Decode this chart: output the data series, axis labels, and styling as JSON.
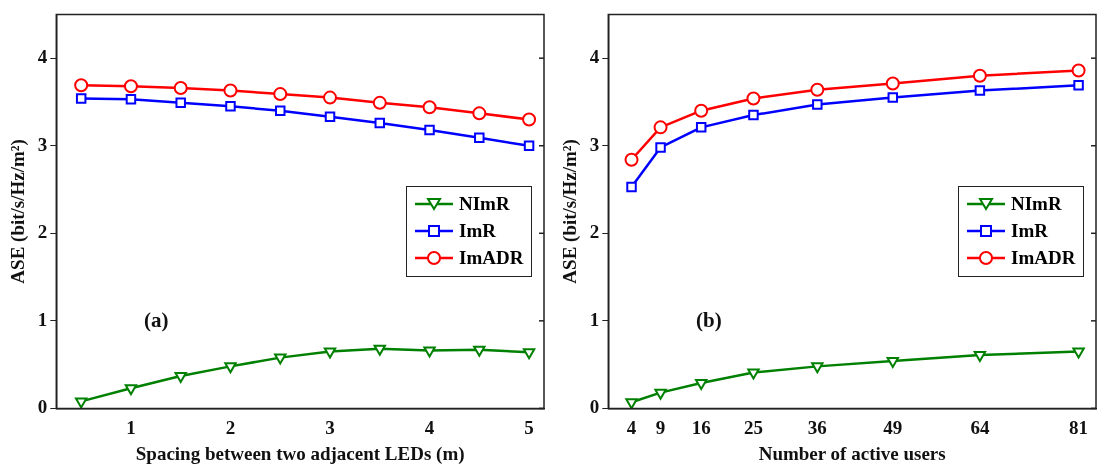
{
  "chart_data": [
    {
      "type": "line",
      "xlabel": "Spacing between two adjacent LEDs (m)",
      "ylabel": "ASE (bit/s/Hz/m²)",
      "annotations": [
        "(a)"
      ],
      "x": [
        0.5,
        1,
        1.5,
        2,
        2.5,
        3,
        3.5,
        4,
        4.5,
        5
      ],
      "series": [
        {
          "name": "NImR",
          "color": "#008000",
          "marker": "triangle",
          "values": [
            0.08,
            0.23,
            0.37,
            0.48,
            0.58,
            0.65,
            0.68,
            0.66,
            0.67,
            0.64
          ]
        },
        {
          "name": "ImR",
          "color": "#0000ff",
          "marker": "square",
          "values": [
            3.54,
            3.53,
            3.49,
            3.45,
            3.4,
            3.33,
            3.26,
            3.18,
            3.09,
            3.0
          ]
        },
        {
          "name": "ImADR",
          "color": "#ff0000",
          "marker": "circle",
          "values": [
            3.69,
            3.68,
            3.66,
            3.63,
            3.59,
            3.55,
            3.49,
            3.44,
            3.37,
            3.3
          ]
        }
      ],
      "xlim": [
        0.25,
        5.15
      ],
      "xticks": [
        1,
        2,
        3,
        4,
        5
      ],
      "ylim": [
        0,
        4.5
      ],
      "yticks": [
        0,
        1,
        2,
        3,
        4
      ],
      "grid": false,
      "legend": "right"
    },
    {
      "type": "line",
      "xlabel": "Number of active users",
      "ylabel": "ASE (bit/s/Hz/m²)",
      "annotations": [
        "(b)"
      ],
      "x": [
        4,
        9,
        16,
        25,
        36,
        49,
        64,
        81
      ],
      "series": [
        {
          "name": "NImR",
          "color": "#008000",
          "marker": "triangle",
          "values": [
            0.07,
            0.18,
            0.29,
            0.41,
            0.48,
            0.54,
            0.61,
            0.65
          ]
        },
        {
          "name": "ImR",
          "color": "#0000ff",
          "marker": "square",
          "values": [
            2.53,
            2.98,
            3.21,
            3.35,
            3.47,
            3.55,
            3.63,
            3.69
          ]
        },
        {
          "name": "ImADR",
          "color": "#ff0000",
          "marker": "circle",
          "values": [
            2.84,
            3.21,
            3.4,
            3.54,
            3.64,
            3.71,
            3.8,
            3.86
          ]
        }
      ],
      "xlim": [
        0,
        84
      ],
      "xticks": [
        4,
        9,
        16,
        25,
        36,
        49,
        64,
        81
      ],
      "ylim": [
        0,
        4.5
      ],
      "yticks": [
        0,
        1,
        2,
        3,
        4
      ],
      "grid": false,
      "legend": "right"
    }
  ]
}
